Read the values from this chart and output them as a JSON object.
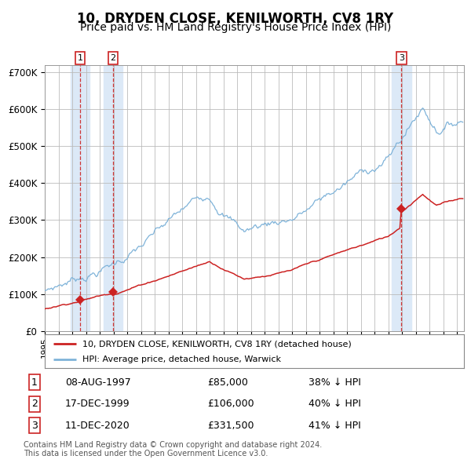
{
  "title": "10, DRYDEN CLOSE, KENILWORTH, CV8 1RY",
  "subtitle": "Price paid vs. HM Land Registry's House Price Index (HPI)",
  "title_fontsize": 12,
  "subtitle_fontsize": 10,
  "bg_color": "#ffffff",
  "plot_bg_color": "#ffffff",
  "grid_color": "#bbbbbb",
  "sale_color": "#cc2222",
  "hpi_color": "#7fb3d9",
  "vline_color": "#cc2222",
  "vband_color": "#dce9f7",
  "ylim": [
    0,
    720000
  ],
  "ytick_vals": [
    0,
    100000,
    200000,
    300000,
    400000,
    500000,
    600000,
    700000
  ],
  "ytick_labels": [
    "£0",
    "£100K",
    "£200K",
    "£300K",
    "£400K",
    "£500K",
    "£600K",
    "£700K"
  ],
  "xmin": 1995.0,
  "xmax": 2025.5,
  "sales": [
    {
      "label": "1",
      "date_num": 1997.58,
      "price": 85000,
      "date_str": "08-AUG-1997",
      "price_str": "£85,000",
      "hpi_str": "38% ↓ HPI"
    },
    {
      "label": "2",
      "date_num": 1999.96,
      "price": 106000,
      "date_str": "17-DEC-1999",
      "price_str": "£106,000",
      "hpi_str": "40% ↓ HPI"
    },
    {
      "label": "3",
      "date_num": 2020.95,
      "price": 331500,
      "date_str": "11-DEC-2020",
      "price_str": "£331,500",
      "hpi_str": "41% ↓ HPI"
    }
  ],
  "legend_sale_label": "10, DRYDEN CLOSE, KENILWORTH, CV8 1RY (detached house)",
  "legend_hpi_label": "HPI: Average price, detached house, Warwick",
  "footer": "Contains HM Land Registry data © Crown copyright and database right 2024.\nThis data is licensed under the Open Government Licence v3.0."
}
